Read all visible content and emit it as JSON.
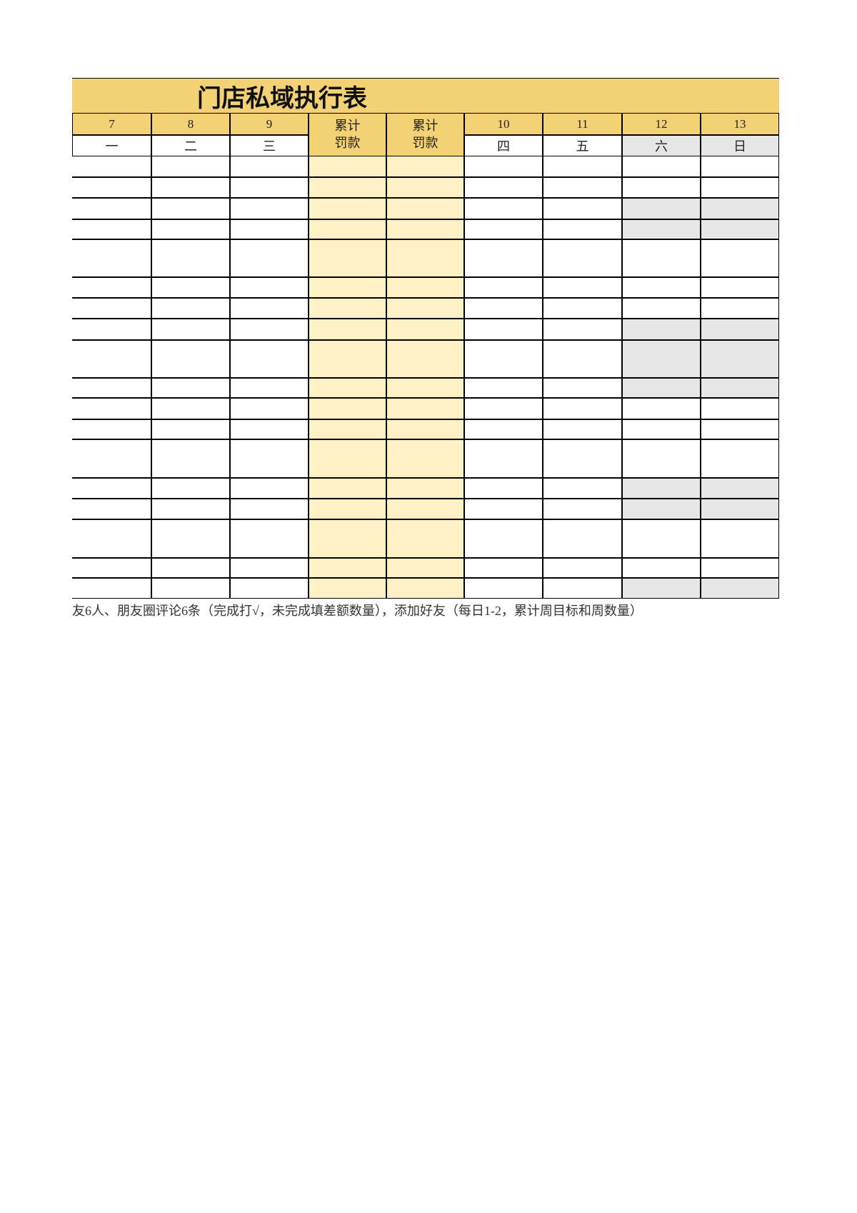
{
  "title": "门店私域执行表",
  "header": {
    "dates": [
      "7",
      "8",
      "9",
      "累计罚款",
      "累计罚款",
      "10",
      "11",
      "12",
      "13"
    ],
    "weekdays": [
      "一",
      "二",
      "三",
      "四",
      "五",
      "六",
      "日"
    ]
  },
  "footer": "友6人、朋友圈评论6条（完成打√，未完成填差额数量），添加好友（每日1-2，累计周目标和周数量）"
}
